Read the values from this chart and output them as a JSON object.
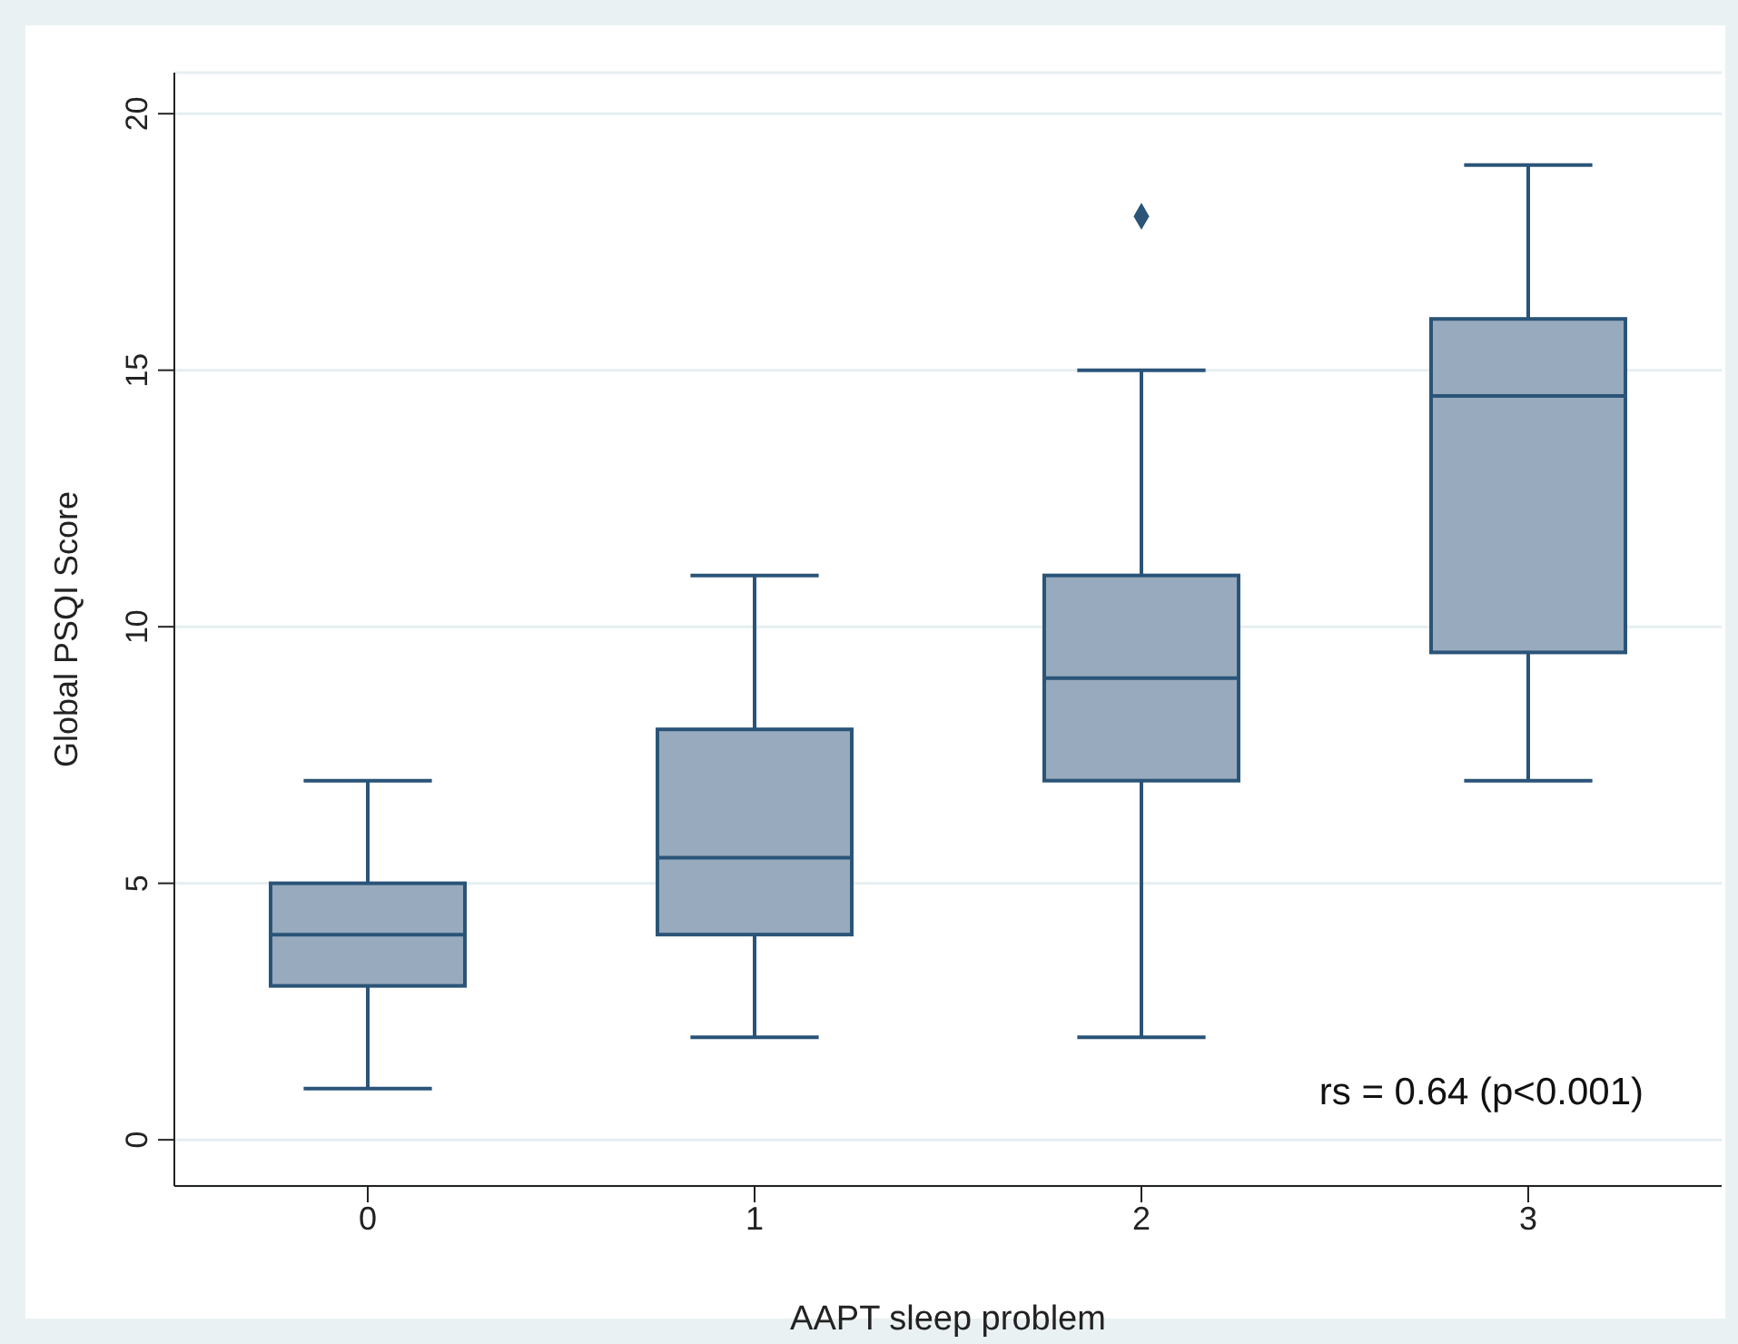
{
  "chart_data": {
    "type": "box",
    "xlabel": "AAPT sleep problem",
    "ylabel": "Global PSQI Score",
    "categories": [
      "0",
      "1",
      "2",
      "3"
    ],
    "boxes": [
      {
        "low": 1,
        "q1": 3,
        "median": 4,
        "q3": 5,
        "high": 7
      },
      {
        "low": 2,
        "q1": 4,
        "median": 5.5,
        "q3": 8,
        "high": 11
      },
      {
        "low": 2,
        "q1": 7,
        "median": 9,
        "q3": 11,
        "high": 15,
        "outliers": [
          18
        ]
      },
      {
        "low": 7,
        "q1": 9.5,
        "median": 14.5,
        "q3": 16,
        "high": 19
      }
    ],
    "color": "#98aabd",
    "ylim": [
      -0.9,
      20.8
    ],
    "yticks": [
      0,
      5,
      10,
      15,
      20
    ],
    "grid": "y",
    "legend": false,
    "annotations": [
      "rs = 0.64 (p<0.001)"
    ]
  }
}
